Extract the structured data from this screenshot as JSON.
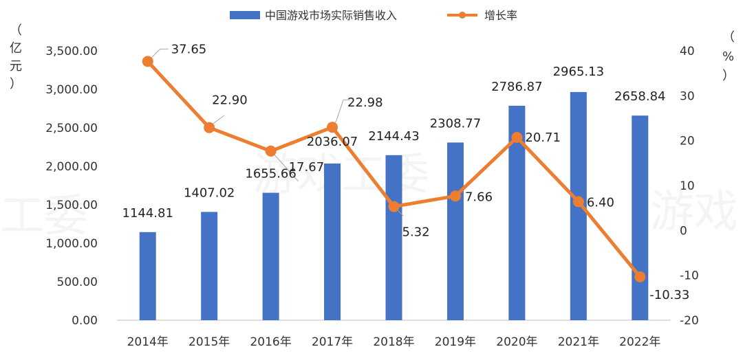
{
  "watermark": {
    "text_center": "游戏工委",
    "text_left": "工委",
    "text_right": "游戏"
  },
  "chart_data": {
    "type": "bar",
    "categories": [
      "2014年",
      "2015年",
      "2016年",
      "2017年",
      "2018年",
      "2019年",
      "2020年",
      "2021年",
      "2022年"
    ],
    "series": [
      {
        "name": "中国游戏市场实际销售收入",
        "type": "bar",
        "axis": "left",
        "color": "#4472C4",
        "values": [
          1144.81,
          1407.02,
          1655.66,
          2036.07,
          2144.43,
          2308.77,
          2786.87,
          2965.13,
          2658.84
        ],
        "labels": [
          "1144.81",
          "1407.02",
          "1655.66",
          "2036.07",
          "2144.43",
          "2308.77",
          "2786.87",
          "2965.13",
          "2658.84"
        ]
      },
      {
        "name": "增长率",
        "type": "line",
        "axis": "right",
        "color": "#ED7D31",
        "values": [
          37.65,
          22.9,
          17.67,
          22.98,
          5.32,
          7.66,
          20.71,
          6.4,
          -10.33
        ],
        "labels": [
          "37.65",
          "22.90",
          "17.67",
          "22.98",
          "5.32",
          "7.66",
          "20.71",
          "6.40",
          "-10.33"
        ]
      }
    ],
    "y_left": {
      "label_chars": [
        "（",
        "亿",
        "元",
        "）"
      ],
      "ylim": [
        0,
        3500
      ],
      "ticks": [
        "0.00",
        "500.00",
        "1,000.00",
        "1,500.00",
        "2,000.00",
        "2,500.00",
        "3,000.00",
        "3,500.00"
      ]
    },
    "y_right": {
      "label_chars": [
        "（",
        "%",
        "）"
      ],
      "ylim": [
        -20,
        40
      ],
      "ticks": [
        "-20",
        "-10",
        "0",
        "10",
        "20",
        "30",
        "40"
      ]
    },
    "grid": false,
    "legend_position": "top-center"
  }
}
